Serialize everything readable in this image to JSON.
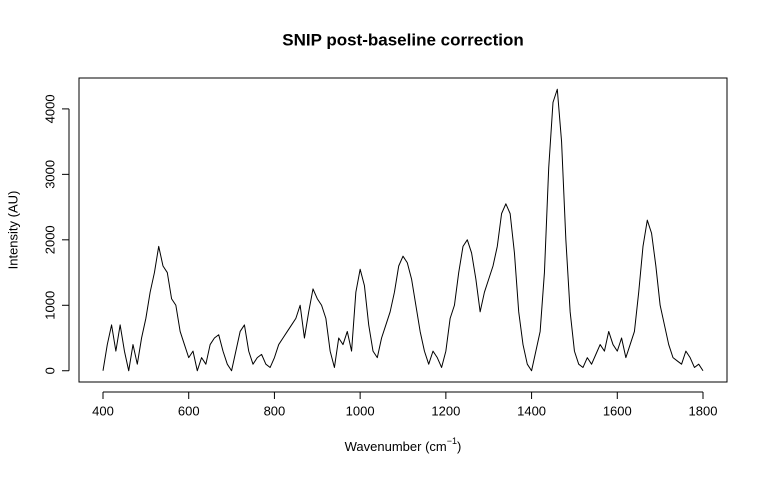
{
  "chart_data": {
    "type": "line",
    "title": "SNIP post-baseline correction",
    "x_label_parts": [
      "Wavenumber (cm",
      "−1",
      ")"
    ],
    "y_label": "Intensity (AU)",
    "x": [
      400,
      410,
      420,
      430,
      440,
      450,
      460,
      470,
      480,
      490,
      500,
      510,
      520,
      530,
      540,
      550,
      560,
      570,
      580,
      590,
      600,
      610,
      620,
      630,
      640,
      650,
      660,
      670,
      680,
      690,
      700,
      710,
      720,
      730,
      740,
      750,
      760,
      770,
      780,
      790,
      800,
      810,
      820,
      830,
      840,
      850,
      860,
      870,
      880,
      890,
      900,
      910,
      920,
      930,
      940,
      950,
      960,
      970,
      980,
      990,
      1000,
      1010,
      1020,
      1030,
      1040,
      1050,
      1060,
      1070,
      1080,
      1090,
      1100,
      1110,
      1120,
      1130,
      1140,
      1150,
      1160,
      1170,
      1180,
      1190,
      1200,
      1210,
      1220,
      1230,
      1240,
      1250,
      1260,
      1270,
      1280,
      1290,
      1300,
      1310,
      1320,
      1330,
      1340,
      1350,
      1360,
      1370,
      1380,
      1390,
      1400,
      1410,
      1420,
      1430,
      1440,
      1450,
      1460,
      1470,
      1480,
      1490,
      1500,
      1510,
      1520,
      1530,
      1540,
      1550,
      1560,
      1570,
      1580,
      1590,
      1600,
      1610,
      1620,
      1630,
      1640,
      1650,
      1660,
      1670,
      1680,
      1690,
      1700,
      1710,
      1720,
      1730,
      1740,
      1750,
      1760,
      1770,
      1780,
      1790,
      1800
    ],
    "series": [
      {
        "color": "#000000",
        "values": [
          0,
          400,
          700,
          300,
          700,
          300,
          0,
          400,
          100,
          500,
          800,
          1200,
          1500,
          1900,
          1600,
          1500,
          1100,
          1000,
          600,
          400,
          200,
          300,
          0,
          200,
          100,
          400,
          500,
          550,
          300,
          100,
          0,
          300,
          600,
          700,
          300,
          100,
          200,
          250,
          100,
          50,
          200,
          400,
          500,
          600,
          700,
          800,
          1000,
          500,
          900,
          1250,
          1100,
          1000,
          800,
          300,
          50,
          500,
          400,
          600,
          300,
          1200,
          1550,
          1300,
          700,
          300,
          200,
          500,
          700,
          900,
          1200,
          1600,
          1750,
          1650,
          1400,
          1000,
          600,
          300,
          100,
          300,
          200,
          50,
          300,
          800,
          1000,
          1500,
          1900,
          2000,
          1800,
          1400,
          900,
          1200,
          1400,
          1600,
          1900,
          2400,
          2550,
          2400,
          1800,
          900,
          400,
          100,
          0,
          300,
          600,
          1500,
          3100,
          4100,
          4300,
          3500,
          2000,
          900,
          300,
          100,
          50,
          200,
          100,
          250,
          400,
          300,
          600,
          400,
          300,
          500,
          200,
          400,
          600,
          1200,
          1900,
          2300,
          2100,
          1600,
          1000,
          700,
          400,
          200,
          150,
          100,
          300,
          200,
          50,
          100,
          0
        ]
      }
    ],
    "xlim": [
      344,
      1856
    ],
    "ylim": [
      -172,
      4472
    ],
    "xticks": [
      400,
      600,
      800,
      1000,
      1200,
      1400,
      1600,
      1800
    ],
    "yticks": [
      0,
      1000,
      2000,
      3000,
      4000
    ]
  }
}
